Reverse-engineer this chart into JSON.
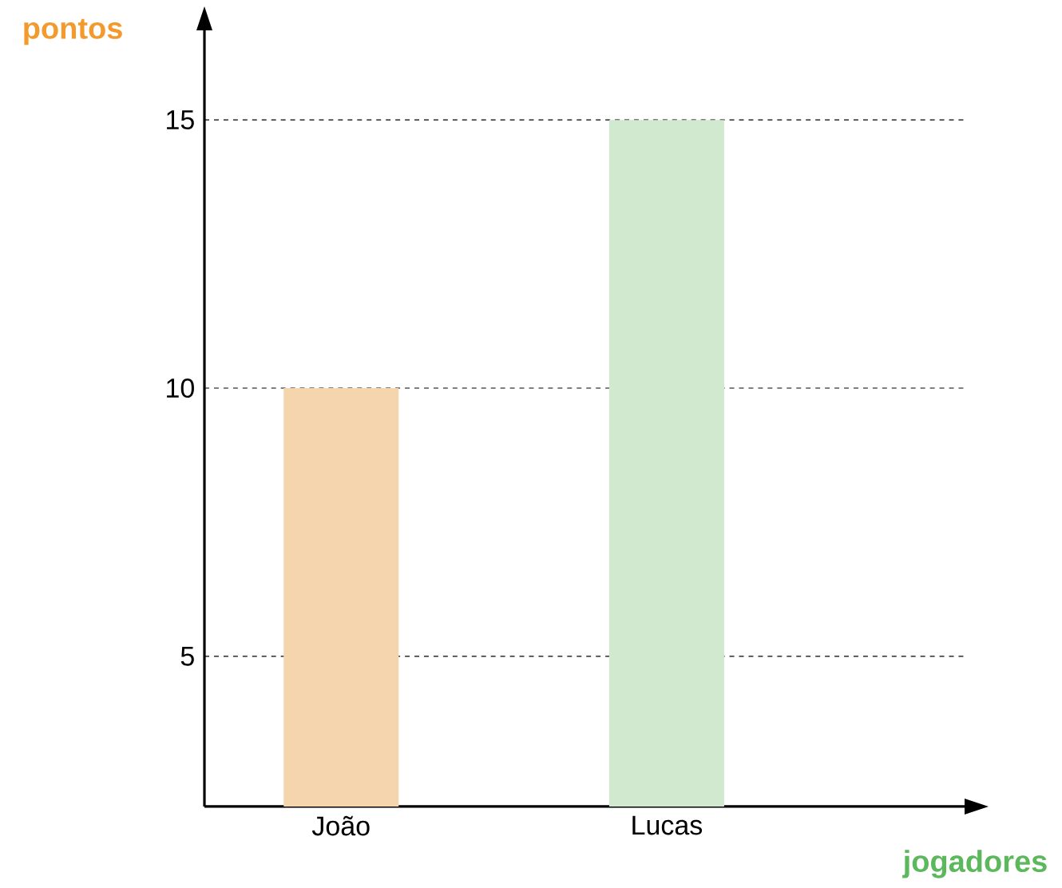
{
  "chart_data": {
    "type": "bar",
    "xlabel": "jogadores",
    "ylabel": "pontos",
    "categories": [
      "João",
      "Lucas"
    ],
    "values": [
      10,
      15
    ],
    "colors": [
      "#f5d5ae",
      "#d1e9cf"
    ],
    "ylim": [
      2.2,
      16.7
    ],
    "yticks": [
      5,
      10,
      15
    ],
    "grid": "y"
  }
}
